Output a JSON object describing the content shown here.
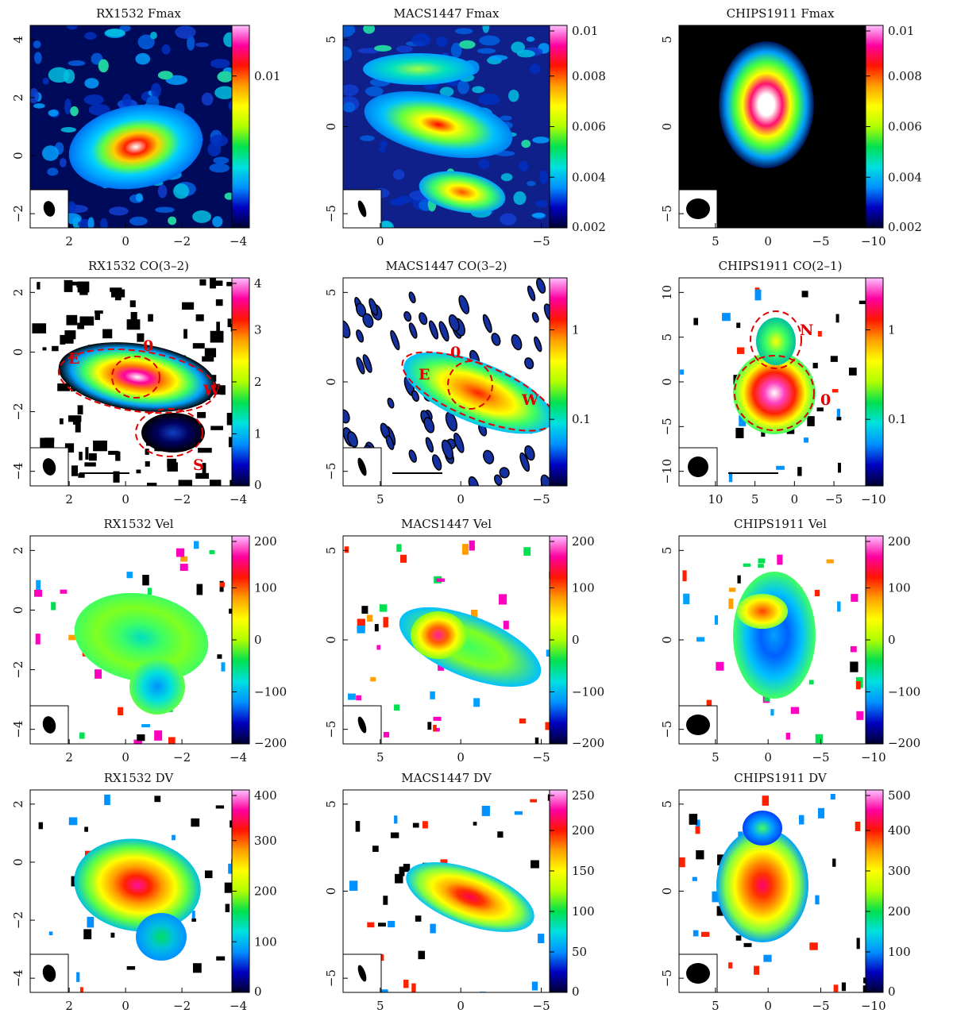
{
  "figure": {
    "panels": [
      {
        "id": "rx1532-fmax",
        "title": "RX1532 Fmax",
        "map": "fmax",
        "cmap": "std",
        "bg": "#000a5a",
        "bgPattern": "noisy",
        "xticks": [
          "2",
          "0",
          "−2",
          "−4"
        ],
        "yticks": [
          "4",
          "2",
          "0",
          "−2"
        ],
        "cbar": [
          "0.01"
        ],
        "blobs": "rx-fmax",
        "beam": {
          "rx": 7,
          "ry": 10,
          "rot": -15
        }
      },
      {
        "id": "macs1447-fmax",
        "title": "MACS1447 Fmax",
        "map": "fmax",
        "cmap": "std",
        "bg": "#10208a",
        "bgPattern": "noisy",
        "xticks": [
          "0",
          "−5"
        ],
        "yticks": [
          "5",
          "0",
          "−5"
        ],
        "cbar": [
          "0.01",
          "0.008",
          "0.006",
          "0.004",
          "0.002"
        ],
        "blobs": "macs-fmax",
        "beam": {
          "rx": 4,
          "ry": 11,
          "rot": -20
        }
      },
      {
        "id": "chips1911-fmax",
        "title": "CHIPS1911 Fmax",
        "map": "fmax",
        "cmap": "std",
        "bg": "#000000",
        "bgPattern": "none",
        "xticks": [
          "5",
          "0",
          "−5",
          "−10"
        ],
        "yticks": [
          "5",
          "0",
          "−5"
        ],
        "cbar": [
          "0.01",
          "0.008",
          "0.006",
          "0.004",
          "0.002"
        ],
        "blobs": "chips-fmax",
        "beam": {
          "rx": 15,
          "ry": 13,
          "rot": 0
        }
      },
      {
        "id": "rx1532-co32",
        "title": "RX1532 CO(3–2)",
        "map": "co",
        "cmap": "std",
        "bg": "#ffffff",
        "bgPattern": "specks-black",
        "xticks": [
          "2",
          "0",
          "−2",
          "−4"
        ],
        "yticks": [
          "2",
          "0",
          "−2",
          "−4"
        ],
        "cbar": [
          "4",
          "3",
          "2",
          "1",
          "0"
        ],
        "blobs": "rx-co",
        "beam": {
          "rx": 8,
          "ry": 11,
          "rot": -15
        },
        "regions": [
          "E",
          "0",
          "W",
          "S"
        ]
      },
      {
        "id": "macs1447-co32",
        "title": "MACS1447 CO(3–2)",
        "map": "co",
        "cmap": "std",
        "bg": "#ffffff",
        "bgPattern": "specks-blue",
        "xticks": [
          "5",
          "0",
          "−5"
        ],
        "yticks": [
          "5",
          "0",
          "−5"
        ],
        "cbar": [
          "1",
          "0.1"
        ],
        "blobs": "macs-co",
        "beam": {
          "rx": 4,
          "ry": 12,
          "rot": -20
        },
        "regions": [
          "E",
          "0",
          "W"
        ]
      },
      {
        "id": "chips1911-co21",
        "title": "CHIPS1911 CO(2–1)",
        "map": "co",
        "cmap": "std",
        "bg": "#ffffff",
        "bgPattern": "sparse",
        "xticks": [
          "10",
          "5",
          "0",
          "−5",
          "−10"
        ],
        "yticks": [
          "10",
          "5",
          "0",
          "−5",
          "−10"
        ],
        "cbar": [
          "1",
          "0.1"
        ],
        "blobs": "chips-co",
        "beam": {
          "rx": 13,
          "ry": 13,
          "rot": 0
        },
        "regions": [
          "N",
          "0"
        ]
      },
      {
        "id": "rx1532-vel",
        "title": "RX1532 Vel",
        "map": "vel",
        "cmap": "std",
        "bg": "#ffffff",
        "bgPattern": "sparse",
        "xticks": [
          "2",
          "0",
          "−2",
          "−4"
        ],
        "yticks": [
          "2",
          "0",
          "−2",
          "−4"
        ],
        "cbar": [
          "200",
          "100",
          "0",
          "−100",
          "−200"
        ],
        "blobs": "rx-vel",
        "beam": {
          "rx": 8,
          "ry": 11,
          "rot": -15
        }
      },
      {
        "id": "macs1447-vel",
        "title": "MACS1447 Vel",
        "map": "vel",
        "cmap": "std",
        "bg": "#ffffff",
        "bgPattern": "sparse",
        "xticks": [
          "5",
          "0",
          "−5"
        ],
        "yticks": [
          "5",
          "0",
          "−5"
        ],
        "cbar": [
          "200",
          "100",
          "0",
          "−100",
          "−200"
        ],
        "blobs": "macs-vel",
        "beam": {
          "rx": 4,
          "ry": 11,
          "rot": -20
        }
      },
      {
        "id": "chips1911-vel",
        "title": "CHIPS1911 Vel",
        "map": "vel",
        "cmap": "std",
        "bg": "#ffffff",
        "bgPattern": "sparse",
        "xticks": [
          "5",
          "0",
          "−5",
          "−10"
        ],
        "yticks": [
          "5",
          "0",
          "−5"
        ],
        "cbar": [
          "200",
          "100",
          "0",
          "−100",
          "−200"
        ],
        "blobs": "chips-vel",
        "beam": {
          "rx": 15,
          "ry": 13,
          "rot": 0
        }
      },
      {
        "id": "rx1532-dv",
        "title": "RX1532 DV",
        "map": "dv",
        "cmap": "std",
        "bg": "#ffffff",
        "bgPattern": "sparse",
        "xticks": [
          "2",
          "0",
          "−2",
          "−4"
        ],
        "yticks": [
          "2",
          "0",
          "−2",
          "−4"
        ],
        "cbar": [
          "400",
          "300",
          "200",
          "100",
          "0"
        ],
        "blobs": "rx-dv",
        "beam": {
          "rx": 8,
          "ry": 11,
          "rot": -15
        }
      },
      {
        "id": "macs1447-dv",
        "title": "MACS1447 DV",
        "map": "dv",
        "cmap": "std",
        "bg": "#ffffff",
        "bgPattern": "sparse",
        "xticks": [
          "5",
          "0",
          "−5"
        ],
        "yticks": [
          "5",
          "0",
          "−5"
        ],
        "cbar": [
          "250",
          "200",
          "150",
          "100",
          "50",
          "0"
        ],
        "blobs": "macs-dv",
        "beam": {
          "rx": 4,
          "ry": 11,
          "rot": -20
        }
      },
      {
        "id": "chips1911-dv",
        "title": "CHIPS1911 DV",
        "map": "dv",
        "cmap": "std",
        "bg": "#ffffff",
        "bgPattern": "sparse",
        "xticks": [
          "5",
          "0",
          "−5",
          "−10"
        ],
        "yticks": [
          "5",
          "0",
          "−5"
        ],
        "cbar": [
          "500",
          "400",
          "300",
          "200",
          "100",
          "0"
        ],
        "blobs": "chips-dv",
        "beam": {
          "rx": 15,
          "ry": 13,
          "rot": 0
        }
      }
    ]
  },
  "chart_data": {
    "type": "heatmap",
    "panels": [
      {
        "title": "RX1532 Fmax",
        "xticks": [
          2,
          0,
          -2,
          -4
        ],
        "yticks": [
          4,
          2,
          0,
          -2
        ],
        "colorbar_ticks": [
          0.01
        ]
      },
      {
        "title": "MACS1447 Fmax",
        "xticks": [
          0,
          -5
        ],
        "yticks": [
          5,
          0,
          -5
        ],
        "colorbar_ticks": [
          0.01,
          0.008,
          0.006,
          0.004,
          0.002
        ]
      },
      {
        "title": "CHIPS1911 Fmax",
        "xticks": [
          5,
          0,
          -5,
          -10
        ],
        "yticks": [
          5,
          0,
          -5
        ],
        "colorbar_ticks": [
          0.01,
          0.008,
          0.006,
          0.004,
          0.002
        ]
      },
      {
        "title": "RX1532 CO(3–2)",
        "xticks": [
          2,
          0,
          -2,
          -4
        ],
        "yticks": [
          2,
          0,
          -2,
          -4
        ],
        "colorbar_ticks": [
          4,
          3,
          2,
          1,
          0
        ],
        "region_labels": [
          "E",
          "0",
          "W",
          "S"
        ]
      },
      {
        "title": "MACS1447 CO(3–2)",
        "xticks": [
          5,
          0,
          -5
        ],
        "yticks": [
          5,
          0,
          -5
        ],
        "colorbar_ticks": [
          1,
          0.1
        ],
        "region_labels": [
          "E",
          "0",
          "W"
        ]
      },
      {
        "title": "CHIPS1911 CO(2–1)",
        "xticks": [
          10,
          5,
          0,
          -5,
          -10
        ],
        "yticks": [
          10,
          5,
          0,
          -5,
          -10
        ],
        "colorbar_ticks": [
          1,
          0.1
        ],
        "region_labels": [
          "N",
          "0"
        ]
      },
      {
        "title": "RX1532 Vel",
        "xticks": [
          2,
          0,
          -2,
          -4
        ],
        "yticks": [
          2,
          0,
          -2,
          -4
        ],
        "colorbar_ticks": [
          200,
          100,
          0,
          -100,
          -200
        ]
      },
      {
        "title": "MACS1447 Vel",
        "xticks": [
          5,
          0,
          -5
        ],
        "yticks": [
          5,
          0,
          -5
        ],
        "colorbar_ticks": [
          200,
          100,
          0,
          -100,
          -200
        ]
      },
      {
        "title": "CHIPS1911 Vel",
        "xticks": [
          5,
          0,
          -5,
          -10
        ],
        "yticks": [
          5,
          0,
          -5
        ],
        "colorbar_ticks": [
          200,
          100,
          0,
          -100,
          -200
        ]
      },
      {
        "title": "RX1532 DV",
        "xticks": [
          2,
          0,
          -2,
          -4
        ],
        "yticks": [
          2,
          0,
          -2,
          -4
        ],
        "colorbar_ticks": [
          400,
          300,
          200,
          100,
          0
        ]
      },
      {
        "title": "MACS1447 DV",
        "xticks": [
          5,
          0,
          -5
        ],
        "yticks": [
          5,
          0,
          -5
        ],
        "colorbar_ticks": [
          250,
          200,
          150,
          100,
          50,
          0
        ]
      },
      {
        "title": "CHIPS1911 DV",
        "xticks": [
          5,
          0,
          -5,
          -10
        ],
        "yticks": [
          5,
          0,
          -5
        ],
        "colorbar_ticks": [
          500,
          400,
          300,
          200,
          100,
          0
        ]
      }
    ]
  }
}
